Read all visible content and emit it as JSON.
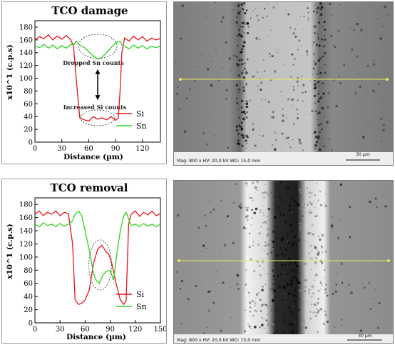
{
  "chart_data": [
    {
      "type": "line",
      "title": "TCO damage",
      "xlabel": "Distance (µm)",
      "ylabel": "x10^1 (c.p.s)",
      "xlim": [
        0,
        140
      ],
      "ylim": [
        0,
        190
      ],
      "xticks": [
        "0",
        "30",
        "60",
        "90",
        "120"
      ],
      "yticks": [
        "0",
        "20",
        "40",
        "60",
        "80",
        "100",
        "120",
        "140",
        "160",
        "180"
      ],
      "legend_position": "bottom-right",
      "annotations": [
        "Dropped Sn counts",
        "Increased Si counts"
      ],
      "series": [
        {
          "name": "Si",
          "color": "#e4141b",
          "x": [
            0,
            5,
            10,
            15,
            20,
            25,
            30,
            35,
            40,
            43,
            46,
            50,
            55,
            60,
            65,
            70,
            75,
            80,
            85,
            90,
            93,
            95,
            97,
            100,
            105,
            110,
            115,
            120,
            125,
            130,
            135,
            140
          ],
          "y": [
            160,
            165,
            162,
            168,
            160,
            166,
            161,
            167,
            160,
            150,
            100,
            38,
            35,
            33,
            40,
            36,
            38,
            35,
            40,
            34,
            38,
            80,
            140,
            163,
            158,
            166,
            160,
            165,
            158,
            163,
            160,
            162
          ]
        },
        {
          "name": "Sn",
          "color": "#2fd21f",
          "x": [
            0,
            5,
            10,
            15,
            20,
            25,
            30,
            35,
            40,
            43,
            46,
            50,
            55,
            60,
            65,
            70,
            75,
            80,
            85,
            90,
            95,
            97,
            100,
            105,
            110,
            115,
            120,
            125,
            130,
            135,
            140
          ],
          "y": [
            150,
            148,
            153,
            147,
            152,
            146,
            151,
            147,
            153,
            152,
            158,
            152,
            148,
            142,
            135,
            130,
            133,
            140,
            148,
            155,
            158,
            152,
            150,
            146,
            152,
            147,
            151,
            146,
            150,
            148,
            150
          ]
        }
      ]
    },
    {
      "type": "line",
      "title": "TCO removal",
      "xlabel": "Distance (µm)",
      "ylabel": "x10^1 (c.p.s)",
      "xlim": [
        0,
        150
      ],
      "ylim": [
        0,
        190
      ],
      "xticks": [
        "0",
        "30",
        "60",
        "90",
        "120",
        "150"
      ],
      "yticks": [
        "0",
        "20",
        "40",
        "60",
        "80",
        "100",
        "120",
        "140",
        "160",
        "180"
      ],
      "legend_position": "bottom-right",
      "series": [
        {
          "name": "Si",
          "color": "#e4141b",
          "x": [
            0,
            5,
            10,
            15,
            20,
            25,
            30,
            35,
            40,
            45,
            48,
            52,
            56,
            60,
            65,
            70,
            75,
            80,
            85,
            88,
            92,
            97,
            102,
            106,
            109,
            112,
            115,
            120,
            125,
            130,
            135,
            140,
            145,
            150
          ],
          "y": [
            165,
            170,
            163,
            168,
            165,
            170,
            163,
            168,
            166,
            120,
            35,
            28,
            30,
            35,
            50,
            90,
            112,
            118,
            108,
            105,
            90,
            60,
            35,
            28,
            33,
            150,
            165,
            170,
            162,
            168,
            164,
            170,
            163,
            166
          ]
        },
        {
          "name": "Sn",
          "color": "#2fd21f",
          "x": [
            0,
            5,
            10,
            15,
            20,
            25,
            30,
            35,
            40,
            45,
            48,
            52,
            56,
            60,
            65,
            70,
            73,
            77,
            81,
            85,
            90,
            94,
            98,
            102,
            106,
            109,
            112,
            115,
            120,
            125,
            130,
            135,
            140,
            145,
            150
          ],
          "y": [
            150,
            146,
            152,
            148,
            150,
            146,
            151,
            147,
            150,
            155,
            165,
            170,
            163,
            140,
            110,
            75,
            65,
            60,
            72,
            78,
            80,
            65,
            105,
            140,
            162,
            168,
            158,
            148,
            150,
            146,
            151,
            147,
            150,
            146,
            150
          ]
        }
      ]
    }
  ],
  "sem_images": [
    {
      "caption": "Mag: 800 x   HV: 20,0 kV   WD: 15,0 mm",
      "scale_label": "30 µm"
    },
    {
      "caption": "Mag: 800 x   HV: 20,0 kV   WD: 15,0 mm",
      "scale_label": "30 µm"
    }
  ],
  "colors": {
    "si": "#e4141b",
    "sn": "#2fd21f",
    "annotation_line": "#000000"
  }
}
